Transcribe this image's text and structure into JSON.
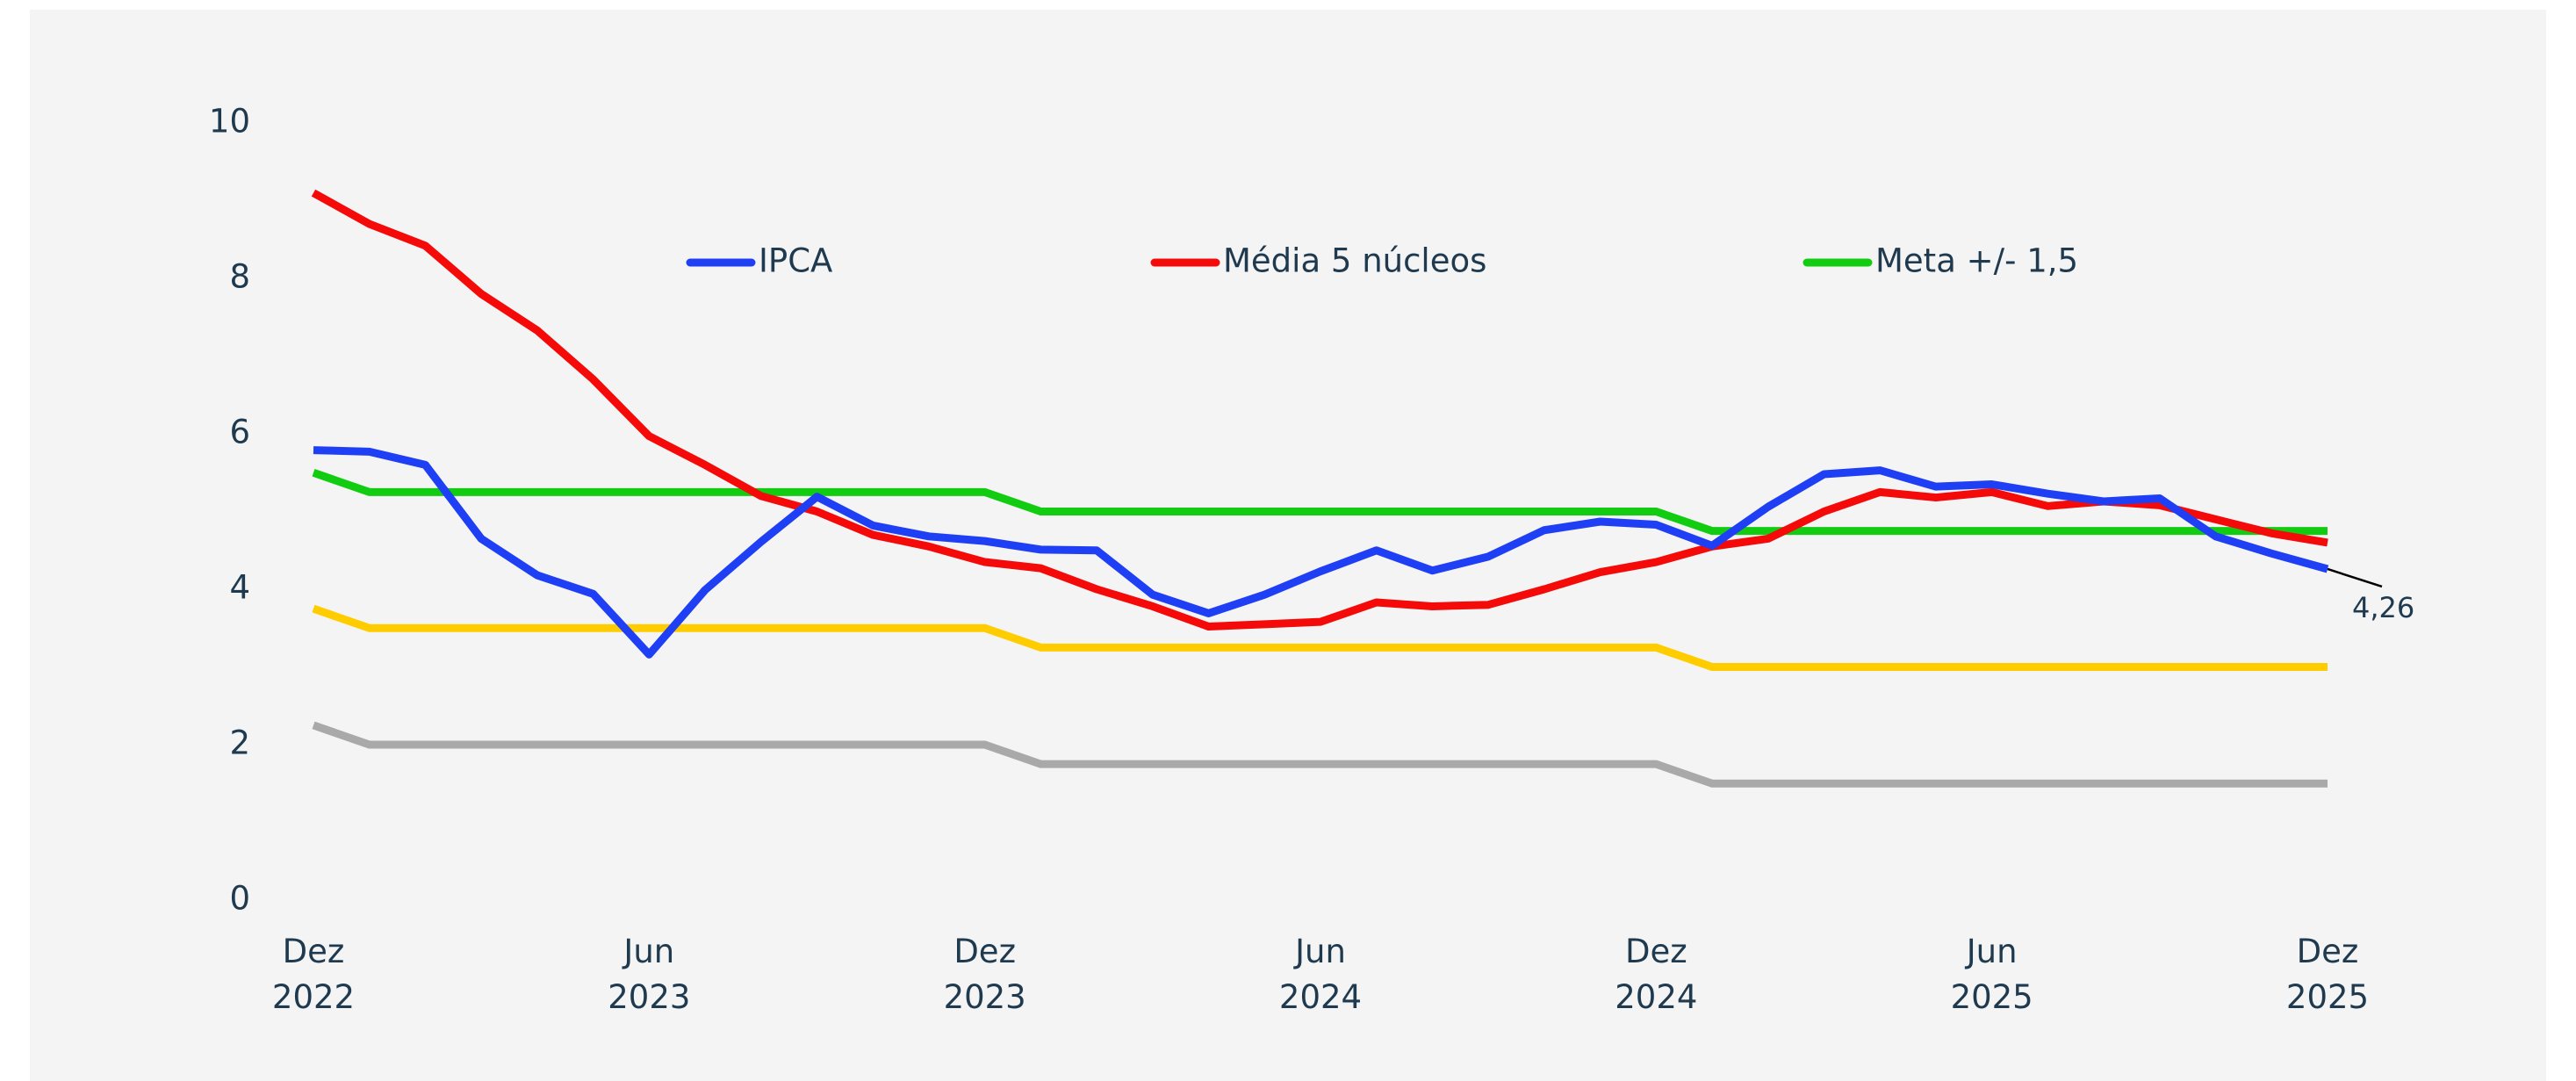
{
  "chart_data": {
    "type": "line",
    "categories": [
      "Dez\n2022",
      null,
      null,
      null,
      null,
      null,
      "Jun\n2023",
      null,
      null,
      null,
      null,
      null,
      "Dez\n2023",
      null,
      null,
      null,
      null,
      null,
      "Jun\n2024",
      null,
      null,
      null,
      null,
      null,
      "Dez\n2024",
      null,
      null,
      null,
      null,
      null,
      "Jun\n2025",
      null,
      null,
      null,
      null,
      null,
      "Dez\n2025"
    ],
    "ylim": [
      0,
      10
    ],
    "yticks": [
      0,
      2,
      4,
      6,
      8,
      10
    ],
    "legend": "top",
    "series": [
      {
        "name": "IPCA",
        "color": "#1f3ff5",
        "values": [
          5.79,
          5.77,
          5.6,
          4.65,
          4.18,
          3.94,
          3.16,
          3.99,
          4.61,
          5.19,
          4.82,
          4.68,
          4.62,
          4.51,
          4.5,
          3.93,
          3.69,
          3.93,
          4.23,
          4.5,
          4.24,
          4.42,
          4.76,
          4.87,
          4.83,
          4.56,
          5.06,
          5.48,
          5.53,
          5.32,
          5.35,
          5.23,
          5.13,
          5.17,
          4.68,
          4.46,
          4.26
        ],
        "value_labels": [
          null,
          null,
          null,
          null,
          null,
          null,
          null,
          null,
          null,
          null,
          null,
          null,
          null,
          null,
          null,
          null,
          null,
          null,
          null,
          null,
          null,
          null,
          null,
          null,
          null,
          null,
          null,
          null,
          null,
          null,
          null,
          null,
          null,
          null,
          null,
          null,
          "4,26"
        ]
      },
      {
        "name": "Média 5 núcleos",
        "color": "#f50a0a",
        "values": [
          9.1,
          8.7,
          8.42,
          7.8,
          7.33,
          6.7,
          5.97,
          5.6,
          5.2,
          5.0,
          4.7,
          4.55,
          4.35,
          4.27,
          4.0,
          3.78,
          3.52,
          3.55,
          3.58,
          3.83,
          3.78,
          3.8,
          4.0,
          4.22,
          4.35,
          4.55,
          4.65,
          5.0,
          5.25,
          5.18,
          5.25,
          5.07,
          5.13,
          5.08,
          4.9,
          4.72,
          4.6
        ]
      },
      {
        "name": "Meta +/- 1,5",
        "color": "#12cc12",
        "values": [
          5.5,
          5.25,
          5.25,
          5.25,
          5.25,
          5.25,
          5.25,
          5.25,
          5.25,
          5.25,
          5.25,
          5.25,
          5.25,
          5.0,
          5.0,
          5.0,
          5.0,
          5.0,
          5.0,
          5.0,
          5.0,
          5.0,
          5.0,
          5.0,
          5.0,
          4.75,
          4.75,
          4.75,
          4.75,
          4.75,
          4.75,
          4.75,
          4.75,
          4.75,
          4.75,
          4.75,
          4.75
        ]
      },
      {
        "color": "#ffcc00",
        "values": [
          3.75,
          3.5,
          3.5,
          3.5,
          3.5,
          3.5,
          3.5,
          3.5,
          3.5,
          3.5,
          3.5,
          3.5,
          3.5,
          3.25,
          3.25,
          3.25,
          3.25,
          3.25,
          3.25,
          3.25,
          3.25,
          3.25,
          3.25,
          3.25,
          3.25,
          3.0,
          3.0,
          3.0,
          3.0,
          3.0,
          3.0,
          3.0,
          3.0,
          3.0,
          3.0,
          3.0,
          3.0
        ]
      },
      {
        "color": "#a9a9a9",
        "values": [
          2.25,
          2.0,
          2.0,
          2.0,
          2.0,
          2.0,
          2.0,
          2.0,
          2.0,
          2.0,
          2.0,
          2.0,
          2.0,
          1.75,
          1.75,
          1.75,
          1.75,
          1.75,
          1.75,
          1.75,
          1.75,
          1.75,
          1.75,
          1.75,
          1.75,
          1.5,
          1.5,
          1.5,
          1.5,
          1.5,
          1.5,
          1.5,
          1.5,
          1.5,
          1.5,
          1.5,
          1.5
        ]
      }
    ]
  }
}
